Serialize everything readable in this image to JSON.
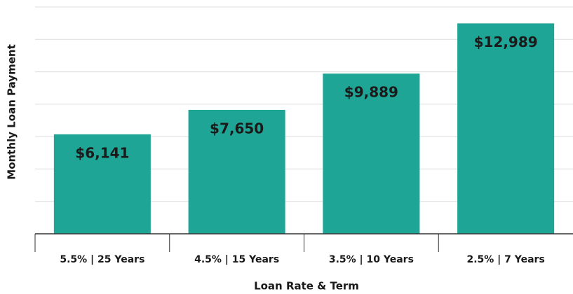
{
  "chart_data": {
    "type": "bar",
    "x_label": "Loan Rate & Term",
    "y_label": "Monthly Loan Payment",
    "categories": [
      "5.5% | 25 Years",
      "4.5% | 15 Years",
      "3.5% | 10 Years",
      "2.5% | 7 Years"
    ],
    "values": [
      6141,
      7650,
      9889,
      12989
    ],
    "value_labels": [
      "$6,141",
      "$7,650",
      "$9,889",
      "$12,989"
    ],
    "color": "#1fa596",
    "ylim": [
      0,
      14000
    ],
    "yticks": [
      0,
      2000,
      4000,
      6000,
      8000,
      10000,
      12000,
      14000
    ],
    "grid": true
  }
}
